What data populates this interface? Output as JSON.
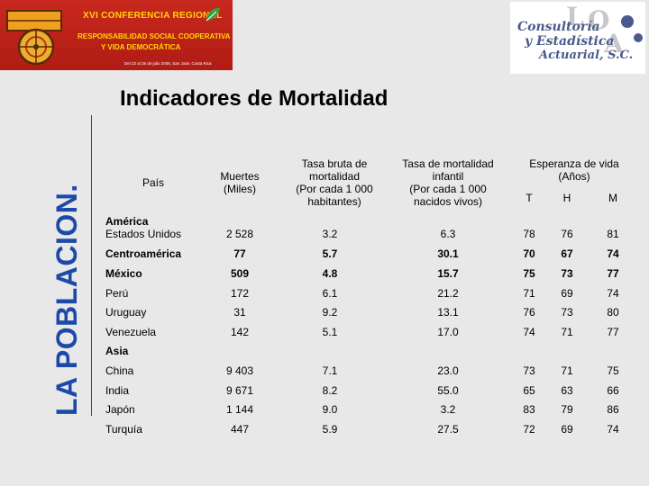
{
  "banner": {
    "line1": "XVI CONFERENCIA REGIONAL",
    "line2": "RESPONSABILIDAD SOCIAL COOPERATIVA",
    "line3": "Y VIDA DEMOCRÁTICA",
    "line4": "Del 22 al 25 de julio 2008, San José, Costa Rica"
  },
  "logo_right": {
    "line1": "Consultoría",
    "line2": "y Estadística",
    "line3": "Actuarial, S.C."
  },
  "vertical_title": "LA POBLACION.",
  "subtitle": "Indicadores de Mortalidad",
  "table": {
    "headers": {
      "pais": "País",
      "muertes": [
        "Muertes",
        "(Miles)"
      ],
      "tbm": [
        "Tasa bruta de",
        "mortalidad",
        "(Por cada 1 000",
        "habitantes)"
      ],
      "tmi": [
        "Tasa de mortalidad",
        "infantil",
        "(Por cada 1 000",
        "nacidos vivos)"
      ],
      "esperanza": [
        "Esperanza de vida",
        "(Años)"
      ],
      "t": "T",
      "h": "H",
      "m": "M"
    },
    "group_america": "América",
    "group_asia": "Asia",
    "rows": [
      {
        "pais": "Estados Unidos",
        "muertes": "2 528",
        "tbm": "3.2",
        "tmi": "6.3",
        "t": "78",
        "h": "76",
        "m": "81",
        "bold": false
      },
      {
        "pais": "Centroamérica",
        "muertes": "77",
        "tbm": "5.7",
        "tmi": "30.1",
        "t": "70",
        "h": "67",
        "m": "74",
        "bold": true
      },
      {
        "pais": "México",
        "muertes": "509",
        "tbm": "4.8",
        "tmi": "15.7",
        "t": "75",
        "h": "73",
        "m": "77",
        "bold": true
      },
      {
        "pais": "Perú",
        "muertes": "172",
        "tbm": "6.1",
        "tmi": "21.2",
        "t": "71",
        "h": "69",
        "m": "74",
        "bold": false
      },
      {
        "pais": "Uruguay",
        "muertes": "31",
        "tbm": "9.2",
        "tmi": "13.1",
        "t": "76",
        "h": "73",
        "m": "80",
        "bold": false
      },
      {
        "pais": "Venezuela",
        "muertes": "142",
        "tbm": "5.1",
        "tmi": "17.0",
        "t": "74",
        "h": "71",
        "m": "77",
        "bold": false
      },
      {
        "pais": "China",
        "muertes": "9 403",
        "tbm": "7.1",
        "tmi": "23.0",
        "t": "73",
        "h": "71",
        "m": "75",
        "bold": false
      },
      {
        "pais": "India",
        "muertes": "9 671",
        "tbm": "8.2",
        "tmi": "55.0",
        "t": "65",
        "h": "63",
        "m": "66",
        "bold": false
      },
      {
        "pais": "Japón",
        "muertes": "1 144",
        "tbm": "9.0",
        "tmi": "3.2",
        "t": "83",
        "h": "79",
        "m": "86",
        "bold": false
      },
      {
        "pais": "Turquía",
        "muertes": "447",
        "tbm": "5.9",
        "tmi": "27.5",
        "t": "72",
        "h": "69",
        "m": "74",
        "bold": false
      }
    ]
  }
}
